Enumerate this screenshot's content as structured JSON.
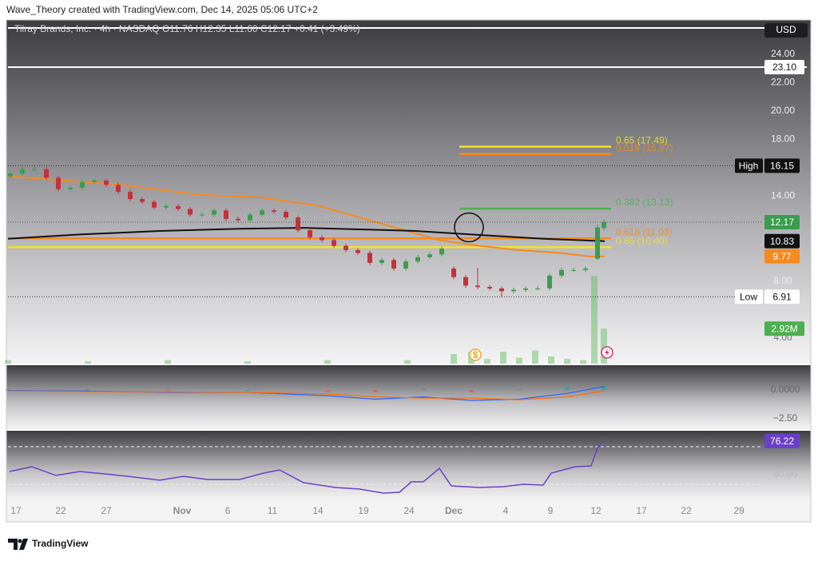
{
  "header": {
    "text": "Wave_Theory created with TradingView.com, Dec 14, 2025 05:06 UTC+2"
  },
  "footer": {
    "logo_text": "TradingView"
  },
  "chart_data": {
    "type": "candlestick",
    "legend_text": "Tilray Brands, Inc. · 4h · NASDAQ  O11.76  H12.35  L11.60  C12.17  +0.41 (+3.49%)",
    "currency": "USD",
    "up_color": "#3a9c4f",
    "down_color": "#c4303d",
    "x": [
      0.3,
      1.8,
      3.3,
      4.8,
      6.3,
      7.8,
      9.3,
      10.8,
      12.3,
      13.8,
      15.3,
      16.8,
      18.3,
      19.8,
      21.3,
      22.8,
      24.3,
      25.8,
      27.3,
      28.8,
      30.3,
      31.8,
      33.3,
      34.8,
      36.3,
      37.8,
      39.3,
      40.8,
      42.3,
      43.8,
      45.3,
      46.8,
      48.3,
      49.8,
      51.3,
      52.8,
      54.3,
      55.8,
      57.3,
      58.8,
      60.3,
      61.8,
      63.3,
      64.8,
      66.3,
      67.8,
      69.3,
      70.8,
      72.3,
      73.8,
      74.6
    ],
    "open": [
      15.4,
      15.6,
      15.9,
      15.9,
      15.3,
      14.5,
      14.6,
      15.0,
      15.1,
      14.8,
      14.3,
      13.8,
      13.6,
      13.2,
      13.3,
      13.1,
      12.7,
      12.7,
      13.0,
      12.4,
      12.3,
      12.7,
      13.0,
      12.9,
      12.5,
      11.6,
      11.1,
      10.9,
      10.5,
      10.2,
      10.0,
      9.3,
      9.5,
      8.9,
      9.4,
      9.7,
      9.9,
      8.9,
      8.3,
      7.7,
      7.6,
      7.5,
      7.3,
      7.4,
      7.5,
      7.5,
      8.4,
      8.8,
      8.8,
      9.6,
      11.76
    ],
    "high": [
      15.75,
      16.05,
      16.15,
      16.05,
      15.45,
      14.75,
      15.15,
      15.25,
      15.25,
      14.95,
      14.45,
      13.95,
      13.75,
      13.45,
      13.45,
      13.25,
      12.85,
      13.15,
      13.15,
      12.55,
      12.85,
      13.15,
      13.15,
      13.05,
      12.65,
      11.75,
      11.25,
      11.05,
      10.65,
      10.35,
      10.15,
      9.65,
      9.65,
      9.55,
      9.85,
      10.05,
      10.45,
      9.05,
      8.45,
      8.95,
      7.75,
      7.65,
      7.55,
      7.65,
      7.65,
      8.55,
      8.95,
      8.95,
      9.05,
      12.0,
      12.35
    ],
    "low": [
      15.25,
      15.45,
      15.75,
      15.15,
      14.35,
      14.35,
      14.45,
      14.85,
      14.65,
      14.15,
      13.65,
      13.45,
      13.05,
      13.05,
      12.95,
      12.55,
      12.55,
      12.55,
      12.25,
      12.15,
      12.15,
      12.55,
      12.75,
      12.35,
      11.45,
      10.95,
      10.75,
      10.35,
      10.05,
      9.85,
      9.15,
      9.15,
      8.75,
      8.75,
      9.25,
      9.55,
      9.75,
      8.15,
      7.55,
      7.45,
      7.35,
      6.91,
      7.15,
      7.25,
      7.35,
      7.35,
      8.25,
      8.65,
      8.65,
      9.5,
      11.6
    ],
    "close": [
      15.6,
      15.9,
      15.9,
      15.3,
      14.5,
      14.6,
      15.0,
      15.1,
      14.8,
      14.3,
      13.8,
      13.6,
      13.2,
      13.3,
      13.1,
      12.7,
      12.7,
      13.0,
      12.4,
      12.3,
      12.7,
      13.0,
      12.9,
      12.5,
      11.6,
      11.1,
      10.9,
      10.5,
      10.2,
      10.0,
      9.3,
      9.5,
      8.9,
      9.4,
      9.7,
      9.9,
      10.3,
      8.3,
      7.7,
      7.6,
      7.5,
      7.3,
      7.4,
      7.5,
      7.5,
      8.4,
      8.8,
      8.8,
      8.9,
      11.8,
      12.17
    ],
    "xlim": [
      0,
      94.5
    ],
    "xticks": [
      {
        "value": 1,
        "label": "17"
      },
      {
        "value": 6.6,
        "label": "22"
      },
      {
        "value": 12.3,
        "label": "27"
      },
      {
        "value": 21.8,
        "label": "Nov"
      },
      {
        "value": 27.5,
        "label": "6"
      },
      {
        "value": 33.1,
        "label": "11"
      },
      {
        "value": 38.8,
        "label": "14"
      },
      {
        "value": 44.5,
        "label": "19"
      },
      {
        "value": 50.2,
        "label": "24"
      },
      {
        "value": 55.8,
        "label": "Dec"
      },
      {
        "value": 62.3,
        "label": "4"
      },
      {
        "value": 67.9,
        "label": "9"
      },
      {
        "value": 73.6,
        "label": "12"
      },
      {
        "value": 79.3,
        "label": "17"
      },
      {
        "value": 84.9,
        "label": "22"
      },
      {
        "value": 91.5,
        "label": "29"
      }
    ],
    "ylim": [
      2.2,
      26.42
    ],
    "yticks": [
      {
        "value": 24,
        "label": "24.00"
      },
      {
        "value": 22,
        "label": "22.00"
      },
      {
        "value": 20,
        "label": "20.00"
      },
      {
        "value": 18,
        "label": "18.00"
      },
      {
        "value": 14,
        "label": "14.00"
      },
      {
        "value": 8,
        "label": "8.00"
      },
      {
        "value": 4,
        "label": "4.00"
      }
    ],
    "moving_averages": [
      {
        "color": "#f58a1f",
        "x": [
          0,
          5,
          14,
          24,
          32,
          39,
          44,
          49,
          54,
          59,
          64,
          69,
          73,
          74.7
        ],
        "values": [
          15.4,
          15.2,
          14.8,
          14.1,
          13.9,
          13.3,
          12.5,
          11.7,
          10.9,
          10.5,
          10.2,
          10.0,
          9.75,
          9.77
        ]
      },
      {
        "color": "#111111",
        "x": [
          0,
          9,
          19,
          29,
          37,
          44,
          51,
          59,
          67,
          74.7
        ],
        "values": [
          11.0,
          11.3,
          11.55,
          11.7,
          11.77,
          11.66,
          11.55,
          11.27,
          11.0,
          10.83
        ]
      }
    ],
    "levels": [
      {
        "label": "0.65 (17.49)",
        "value": 17.49,
        "color": "#f2e22c",
        "x": [
          56.5,
          75.5
        ]
      },
      {
        "label": "0.618 (16.97)",
        "value": 16.97,
        "color": "#f58a1f",
        "x": [
          56.5,
          75.5
        ]
      },
      {
        "label": "0.382 (13.13)",
        "value": 13.13,
        "color": "#4caf50",
        "x": [
          56.5,
          75.5
        ]
      },
      {
        "label": "0.618 (11.03)",
        "value": 11.03,
        "color": "#f58a1f",
        "x": [
          0,
          75.5
        ]
      },
      {
        "label": "0.65 (10.40)",
        "value": 10.4,
        "color": "#f2e22c",
        "x": [
          0,
          75.5
        ]
      }
    ],
    "horizontal_lines": [
      {
        "value": 25.86,
        "color": "#ffffff"
      },
      {
        "value": 23.1,
        "label": "23.10",
        "color": "#ffffff"
      }
    ],
    "markers": [
      {
        "label": "High",
        "value": 16.15
      },
      {
        "label": "Low",
        "value": 6.91
      }
    ],
    "circle_annotation": {
      "x": 57.7,
      "value": 11.8
    },
    "volume": {
      "color": "#5cb85c",
      "ylim": [
        0,
        28.7
      ],
      "x": [
        0,
        10,
        20,
        30,
        40,
        50,
        55.8,
        58,
        60,
        62,
        64,
        66,
        68,
        70,
        72,
        73.4,
        74.6
      ],
      "values": [
        0.3,
        0.2,
        0.3,
        0.2,
        0.3,
        0.3,
        0.8,
        1.0,
        0.4,
        1.0,
        0.5,
        1.1,
        0.6,
        0.4,
        0.3,
        7.3,
        2.92
      ],
      "last_value_label": "2.92M"
    },
    "macd": {
      "ylim": [
        -3.26,
        2.08
      ],
      "yticks": [
        {
          "value": 0,
          "label": "0.0000"
        },
        {
          "value": -2.5,
          "label": "−2.50"
        }
      ],
      "x": [
        0,
        10,
        20,
        30,
        40,
        46,
        52,
        58,
        64,
        70,
        74.6
      ],
      "macd": [
        -0.05,
        -0.1,
        -0.2,
        -0.2,
        -0.5,
        -0.8,
        -0.6,
        -0.9,
        -0.8,
        -0.3,
        0.3
      ],
      "signal": [
        -0.1,
        -0.15,
        -0.15,
        -0.2,
        -0.35,
        -0.6,
        -0.7,
        -0.7,
        -0.85,
        -0.6,
        -0.1
      ],
      "histogram": [
        0.05,
        0.05,
        -0.05,
        0,
        -0.15,
        -0.2,
        0.1,
        -0.2,
        0.05,
        0.3,
        0.4
      ],
      "macd_color": "#2962ff",
      "signal_color": "#ff6d00",
      "hist_up_color": "#26a69a",
      "hist_down_color": "#ef5350"
    },
    "rsi": {
      "ylim": [
        13.8,
        86.2
      ],
      "yticks": [
        {
          "value": 40,
          "label": "40.00"
        }
      ],
      "bands": [
        70,
        30
      ],
      "color": "#6a3fc8",
      "x": [
        0.2,
        3,
        6,
        9,
        12,
        15,
        19,
        22,
        25,
        29,
        32,
        34,
        37,
        41,
        44,
        47,
        49,
        50.5,
        52,
        54,
        55.5,
        59,
        62,
        64.5,
        67,
        68,
        69.5,
        71,
        73,
        73.8,
        74.6
      ],
      "values": [
        43.6,
        48.7,
        39.4,
        43.6,
        41.1,
        38.5,
        34.3,
        38.5,
        35.1,
        35.1,
        41.9,
        45.3,
        31.7,
        26.6,
        24.9,
        20.6,
        21.5,
        32.6,
        32.6,
        47.0,
        28.3,
        26.6,
        27.4,
        30.0,
        29.1,
        41.9,
        45.3,
        48.7,
        49.6,
        69.1,
        76.22
      ]
    }
  }
}
